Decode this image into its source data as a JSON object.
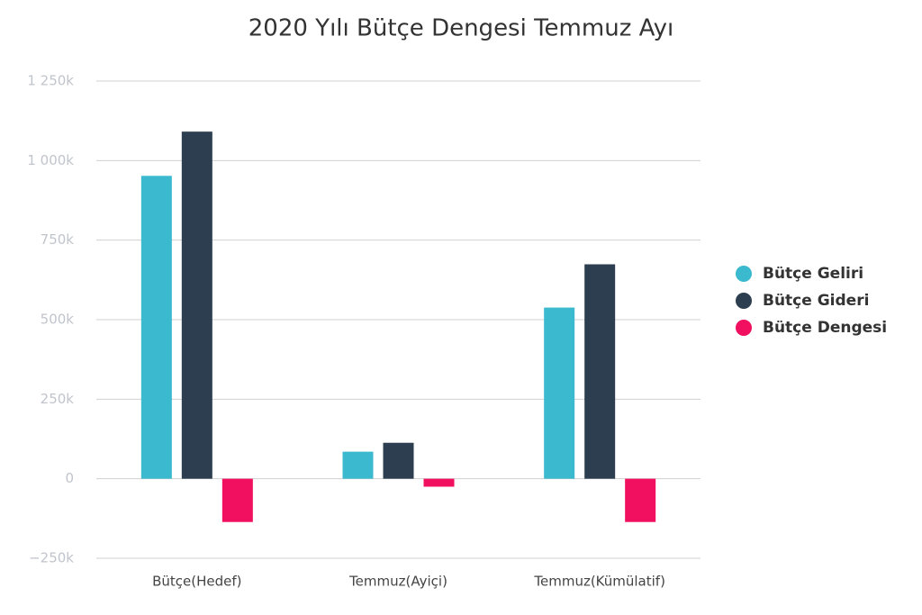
{
  "chart_data": {
    "type": "bar",
    "title": "2020 Yılı Bütçe Dengesi Temmuz Ayı",
    "categories": [
      "Bütçe(Hedef)",
      "Temmuz(Ayiçi)",
      "Temmuz(Kümülatif)"
    ],
    "series": [
      {
        "name": "Bütçe Geliri",
        "color": "#3bbacf",
        "values": [
          952000,
          85000,
          538000
        ]
      },
      {
        "name": "Bütçe Gideri",
        "color": "#2c3e4f",
        "values": [
          1091000,
          113000,
          674000
        ]
      },
      {
        "name": "Bütçe Dengesi",
        "color": "#f0105f",
        "values": [
          -136000,
          -25000,
          -136000
        ]
      }
    ],
    "ylim": [
      -250000,
      1250000
    ],
    "yticks": [
      {
        "value": -250000,
        "label": "−250k"
      },
      0,
      {
        "value": 250000,
        "label": "250k"
      },
      {
        "value": 500000,
        "label": "500k"
      },
      {
        "value": 750000,
        "label": "750k"
      },
      {
        "value": 1000000,
        "label": "1 000k"
      },
      {
        "value": 1250000,
        "label": "1 250k"
      }
    ],
    "grid": true,
    "legend": "right"
  }
}
